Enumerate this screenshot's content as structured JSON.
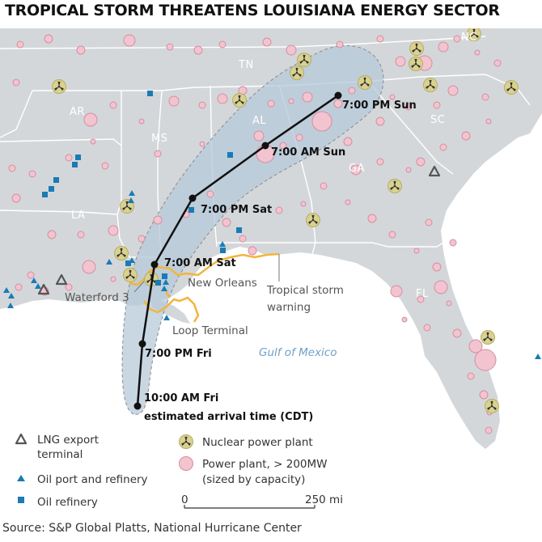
{
  "title": "TROPICAL STORM THREATENS LOUISIANA ENERGY SECTOR",
  "states": {
    "tn": "TN",
    "ar": "AR",
    "ms": "MS",
    "al": "AL",
    "sc": "SC",
    "ga": "GA",
    "la": "LA",
    "fl": "FL",
    "nc": "NC"
  },
  "track": {
    "points": [
      {
        "label": "10:00 AM Fri",
        "sublabel": "estimated arrival time (CDT)"
      },
      {
        "label": "7:00 PM Fri"
      },
      {
        "label": "7:00 AM Sat"
      },
      {
        "label": "7:00 PM Sat"
      },
      {
        "label": "7:00 AM Sun"
      },
      {
        "label": "7:00 PM Sun"
      }
    ]
  },
  "places": {
    "new_orleans": "New Orleans",
    "waterford": "Waterford 3",
    "loop": "Loop Terminal",
    "warning_1": "Tropical storm",
    "warning_2": "warning",
    "gulf": "Gulf of Mexico"
  },
  "legend": {
    "lng_1": "LNG export",
    "lng_2": "terminal",
    "oil_port": "Oil port and refinery",
    "oil_refinery": "Oil refinery",
    "nuclear": "Nuclear power plant",
    "power_1": "Power plant, > 200MW",
    "power_2": "(sized by capacity)",
    "scale_zero": "0",
    "scale_end": "250 mi"
  },
  "source": "Source: S&P Global Platts, National Hurricane Center",
  "colors": {
    "land": "#d4d7da",
    "water": "#ffffff",
    "state_border": "#ffffff",
    "cone": "#b7c9da",
    "track": "#111111",
    "warning": "#f2b53b",
    "power_plant": "#f2c4cf",
    "nuclear": "#d9d18f",
    "oil": "#1a7bb5"
  }
}
